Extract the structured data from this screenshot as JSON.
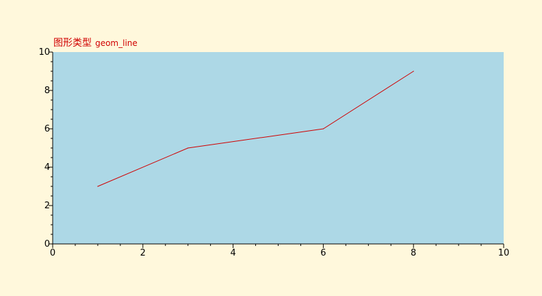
{
  "title": {
    "cn": "图形类型",
    "en": "geom_line"
  },
  "colors": {
    "page_background": "#fff8dc",
    "plot_background": "#add8e6",
    "line": "#d00000",
    "title": "#d00000",
    "axis": "#000000"
  },
  "chart_data": {
    "type": "line",
    "title": "图形类型 geom_line",
    "xlabel": "",
    "ylabel": "",
    "xlim": [
      0,
      10
    ],
    "ylim": [
      0,
      10
    ],
    "x_ticks": [
      0,
      2,
      4,
      6,
      8,
      10
    ],
    "y_ticks": [
      0,
      2,
      4,
      6,
      8,
      10
    ],
    "x_minor_step": 0.5,
    "y_minor_step": 0.5,
    "grid": false,
    "legend": "none",
    "series": [
      {
        "x": [
          1,
          3,
          6,
          8
        ],
        "y": [
          3,
          5,
          6,
          9
        ]
      }
    ]
  }
}
